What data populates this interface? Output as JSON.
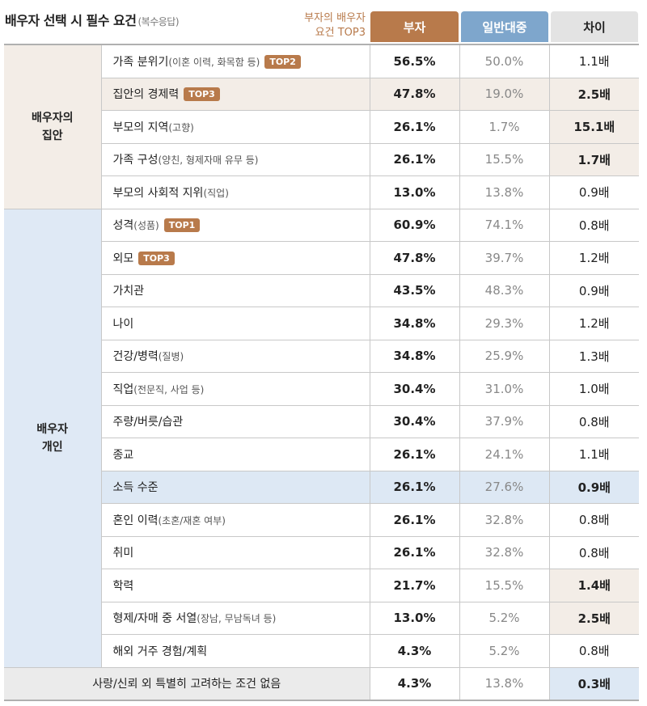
{
  "title": "배우자 선택 시 필수 요건",
  "title_sub": "(복수응답)",
  "top3_label_line1": "부자의 배우자",
  "top3_label_line2": "요건 TOP3",
  "columns": {
    "rich": "부자",
    "public": "일반대중",
    "diff": "차이"
  },
  "colors": {
    "rich": "#b87a4b",
    "public": "#7ea6cc",
    "beige": "#f3ede7",
    "blue": "#dde8f4"
  },
  "groups": [
    {
      "label_line1": "배우자의",
      "label_line2": "집안",
      "bg": "#f3ede7",
      "rows": [
        {
          "label": "가족 분위기",
          "note": "(이혼 이력, 화목함 등)",
          "badge": "TOP2",
          "rich": "56.5%",
          "public": "50.0%",
          "diff": "1.1배",
          "hl": ""
        },
        {
          "label": "집안의 경제력",
          "note": "",
          "badge": "TOP3",
          "rich": "47.8%",
          "public": "19.0%",
          "diff": "2.5배",
          "hl": "row"
        },
        {
          "label": "부모의 지역",
          "note": "(고향)",
          "badge": "",
          "rich": "26.1%",
          "public": "1.7%",
          "diff": "15.1배",
          "hl": "diff"
        },
        {
          "label": "가족 구성",
          "note": "(양친, 형제자매 유무 등)",
          "badge": "",
          "rich": "26.1%",
          "public": "15.5%",
          "diff": "1.7배",
          "hl": "diff"
        },
        {
          "label": "부모의 사회적 지위",
          "note": "(직업)",
          "badge": "",
          "rich": "13.0%",
          "public": "13.8%",
          "diff": "0.9배",
          "hl": ""
        }
      ]
    },
    {
      "label_line1": "배우자",
      "label_line2": "개인",
      "bg": "#dfe9f5",
      "rows": [
        {
          "label": "성격",
          "note": "(성품)",
          "badge": "TOP1",
          "rich": "60.9%",
          "public": "74.1%",
          "diff": "0.8배",
          "hl": ""
        },
        {
          "label": "외모",
          "note": "",
          "badge": "TOP3",
          "rich": "47.8%",
          "public": "39.7%",
          "diff": "1.2배",
          "hl": ""
        },
        {
          "label": "가치관",
          "note": "",
          "badge": "",
          "rich": "43.5%",
          "public": "48.3%",
          "diff": "0.9배",
          "hl": ""
        },
        {
          "label": "나이",
          "note": "",
          "badge": "",
          "rich": "34.8%",
          "public": "29.3%",
          "diff": "1.2배",
          "hl": ""
        },
        {
          "label": "건강/병력",
          "note": "(질병)",
          "badge": "",
          "rich": "34.8%",
          "public": "25.9%",
          "diff": "1.3배",
          "hl": ""
        },
        {
          "label": "직업",
          "note": "(전문직, 사업 등)",
          "badge": "",
          "rich": "30.4%",
          "public": "31.0%",
          "diff": "1.0배",
          "hl": ""
        },
        {
          "label": "주량/버릇/습관",
          "note": "",
          "badge": "",
          "rich": "30.4%",
          "public": "37.9%",
          "diff": "0.8배",
          "hl": ""
        },
        {
          "label": "종교",
          "note": "",
          "badge": "",
          "rich": "26.1%",
          "public": "24.1%",
          "diff": "1.1배",
          "hl": ""
        },
        {
          "label": "소득 수준",
          "note": "",
          "badge": "",
          "rich": "26.1%",
          "public": "27.6%",
          "diff": "0.9배",
          "hl": "blue"
        },
        {
          "label": "혼인 이력",
          "note": "(초혼/재혼 여부)",
          "badge": "",
          "rich": "26.1%",
          "public": "32.8%",
          "diff": "0.8배",
          "hl": ""
        },
        {
          "label": "취미",
          "note": "",
          "badge": "",
          "rich": "26.1%",
          "public": "32.8%",
          "diff": "0.8배",
          "hl": ""
        },
        {
          "label": "학력",
          "note": "",
          "badge": "",
          "rich": "21.7%",
          "public": "15.5%",
          "diff": "1.4배",
          "hl": "diff"
        },
        {
          "label": "형제/자매 중 서열",
          "note": "(장남, 무남독녀 등)",
          "badge": "",
          "rich": "13.0%",
          "public": "5.2%",
          "diff": "2.5배",
          "hl": "diff"
        },
        {
          "label": "해외 거주 경험/계획",
          "note": "",
          "badge": "",
          "rich": "4.3%",
          "public": "5.2%",
          "diff": "0.8배",
          "hl": ""
        }
      ]
    }
  ],
  "last_row": {
    "label": "사랑/신뢰 외 특별히 고려하는 조건 없음",
    "rich": "4.3%",
    "public": "13.8%",
    "diff": "0.3배"
  }
}
